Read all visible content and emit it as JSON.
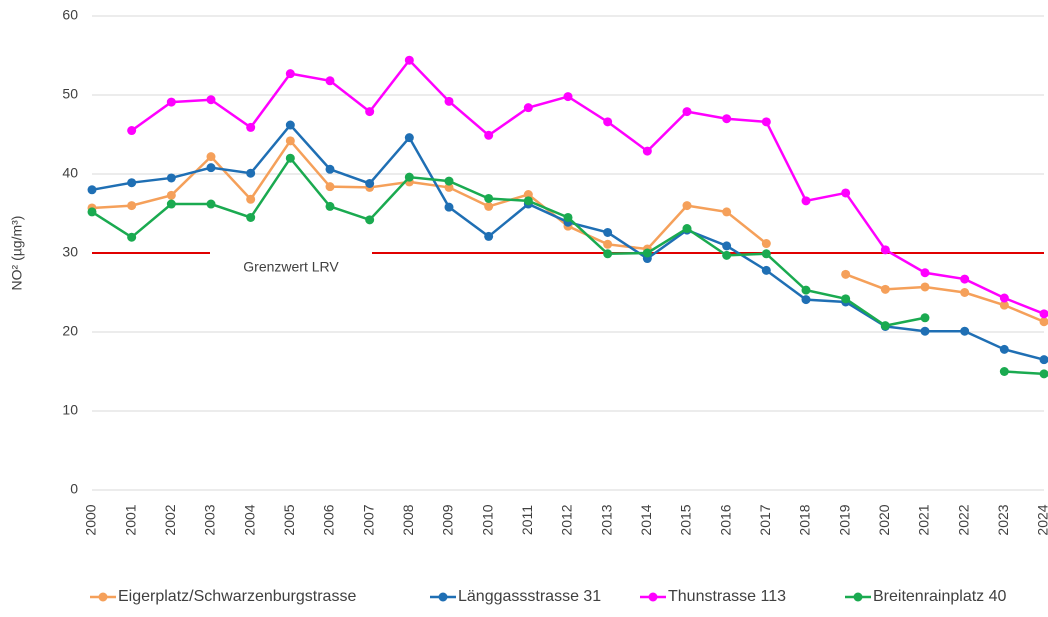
{
  "chart_data": {
    "type": "line",
    "y_label": "NO² (µg/m³)",
    "categories": [
      "2000",
      "2001",
      "2002",
      "2003",
      "2004",
      "2005",
      "2006",
      "2007",
      "2008",
      "2009",
      "2010",
      "2011",
      "2012",
      "2013",
      "2014",
      "2015",
      "2016",
      "2017",
      "2018",
      "2019",
      "2020",
      "2021",
      "2022",
      "2023",
      "2024"
    ],
    "series": [
      {
        "name": "Eigerplatz/Schwarzenburgstrasse",
        "color": "#f5a05a",
        "values": [
          35.7,
          36,
          37.3,
          42.2,
          36.8,
          44.2,
          38.4,
          38.3,
          39,
          38.3,
          35.9,
          37.4,
          33.4,
          31.1,
          30.5,
          36,
          35.2,
          31.2,
          null,
          27.3,
          25.4,
          25.7,
          25,
          23.4,
          21.3
        ]
      },
      {
        "name": "Länggassstrasse 31",
        "color": "#1f6fb4",
        "values": [
          38,
          38.9,
          39.5,
          40.8,
          40.1,
          46.2,
          40.6,
          38.8,
          44.6,
          35.8,
          32.1,
          36.2,
          33.9,
          32.6,
          29.3,
          32.9,
          30.9,
          27.8,
          24.1,
          23.8,
          20.7,
          20.1,
          20.1,
          17.8,
          16.5
        ]
      },
      {
        "name": "Thunstrasse 113",
        "color": "#ff00ff",
        "values": [
          null,
          45.5,
          49.1,
          49.4,
          45.9,
          52.7,
          51.8,
          47.9,
          54.4,
          49.2,
          44.9,
          48.4,
          49.8,
          46.6,
          42.9,
          47.9,
          47,
          46.6,
          36.6,
          37.6,
          30.4,
          27.5,
          26.7,
          24.3,
          22.3
        ]
      },
      {
        "name": "Breitenrainplatz 40",
        "color": "#1aaa50",
        "values": [
          35.2,
          32,
          36.2,
          36.2,
          34.5,
          42,
          35.9,
          34.2,
          39.6,
          39.1,
          36.9,
          36.6,
          34.5,
          29.9,
          30,
          33.1,
          29.7,
          29.9,
          25.3,
          24.2,
          20.8,
          21.8,
          null,
          15,
          14.7
        ]
      }
    ],
    "limit": {
      "value": 30,
      "label": "Grenzwert LRV",
      "color": "#e00000"
    },
    "ylim": [
      0,
      60
    ],
    "yticks": [
      0,
      10,
      20,
      30,
      40,
      50,
      60
    ],
    "grid": true,
    "legend": "bottom"
  }
}
